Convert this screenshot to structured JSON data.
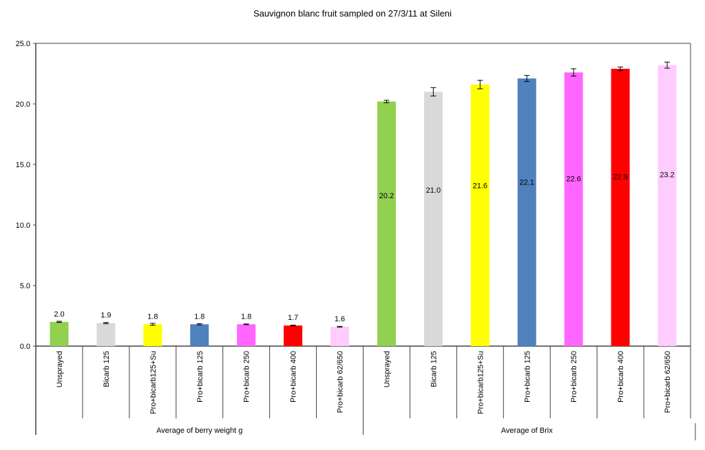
{
  "chart_data": {
    "type": "bar",
    "title": "Sauvignon blanc fruit sampled on 27/3/11 at Sileni",
    "ylim": [
      0,
      25
    ],
    "yticks": [
      "0.0",
      "5.0",
      "10.0",
      "15.0",
      "20.0",
      "25.0"
    ],
    "ytick_values": [
      0,
      5,
      10,
      15,
      20,
      25
    ],
    "grid": false,
    "groups": [
      {
        "name": "Average of berry weight g",
        "categories": [
          "Unsprayed",
          "Bicarb 125",
          "Pro+bicarb125+Su",
          "Pro+bicarb 125",
          "Pro+bicarb 250",
          "Pro+bicarb 400",
          "Pro+bicarb 62/650"
        ],
        "values": [
          2.0,
          1.9,
          1.8,
          1.8,
          1.8,
          1.7,
          1.6
        ],
        "labels": [
          "2.0",
          "1.9",
          "1.8",
          "1.8",
          "1.8",
          "1.7",
          "1.6"
        ],
        "errors": [
          0.05,
          0.05,
          0.08,
          0.05,
          0.03,
          0.03,
          0.03
        ]
      },
      {
        "name": "Average of Brix",
        "categories": [
          "Unsprayed",
          "Bicarb 125",
          "Pro+bicarb125+Su",
          "Pro+bicarb 125",
          "Pro+bicarb 250",
          "Pro+bicarb 400",
          "Pro+bicarb 62/650"
        ],
        "values": [
          20.2,
          21.0,
          21.6,
          22.1,
          22.6,
          22.9,
          23.2
        ],
        "labels": [
          "20.2",
          "21.0",
          "21.6",
          "22.1",
          "22.6",
          "22.9",
          "23.2"
        ],
        "errors": [
          0.1,
          0.35,
          0.35,
          0.25,
          0.3,
          0.15,
          0.25
        ]
      }
    ],
    "colors": [
      "#92d050",
      "#d9d9d9",
      "#ffff00",
      "#4f81bd",
      "#ff66ff",
      "#ff0000",
      "#ffccff"
    ]
  }
}
